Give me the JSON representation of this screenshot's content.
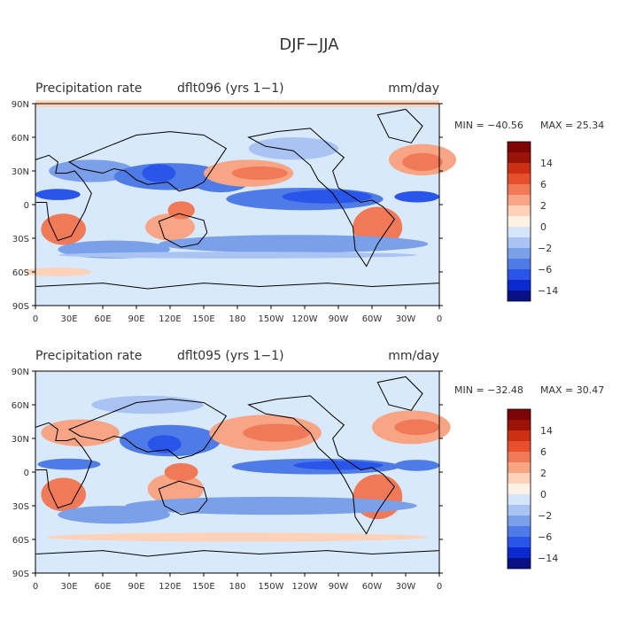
{
  "figure_title": "DJF−JJA",
  "colors": {
    "ocean_background": "#d8e9fb",
    "coast": "#000000",
    "scale": [
      "#0a1086",
      "#0a2ad0",
      "#2a55ea",
      "#4f7be6",
      "#7aa0ea",
      "#a9c4f3",
      "#d5e6fb",
      "#fdf2e4",
      "#fdd2b8",
      "#f8a585",
      "#f07a57",
      "#e6502c",
      "#cc2f12",
      "#9b1207",
      "#7d0505"
    ]
  },
  "panels": [
    {
      "id": "top",
      "title": "Precipitation rate",
      "run": "dflt096 (yrs 1−1)",
      "units": "mm/day",
      "min_label": "MIN = −40.56",
      "max_label": "MAX =  25.34"
    },
    {
      "id": "bottom",
      "title": "Precipitation rate",
      "run": "dflt095 (yrs 1−1)",
      "units": "mm/day",
      "min_label": "MIN = −32.48",
      "max_label": "MAX =  30.47"
    }
  ],
  "colorbar_labels": [
    "14",
    "6",
    "2",
    "0",
    "−2",
    "−6",
    "−14"
  ],
  "lat_ticks": [
    "90N",
    "60N",
    "30N",
    "0",
    "30S",
    "60S",
    "90S"
  ],
  "lon_ticks": [
    "0",
    "30E",
    "60E",
    "90E",
    "120E",
    "150E",
    "180",
    "150W",
    "120W",
    "90W",
    "60W",
    "30W",
    "0"
  ]
}
